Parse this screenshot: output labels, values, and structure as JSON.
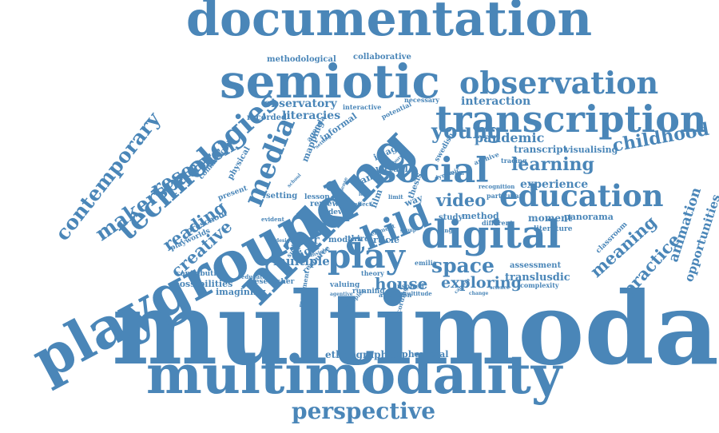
{
  "color": "#4a86b8",
  "words": [
    "multimodal",
    "multimodality",
    "documentation",
    "semiotic",
    "making",
    "playground",
    "digital",
    "transcription",
    "social",
    "observation",
    "child",
    "play",
    "education",
    "perspective",
    "technologies",
    "media",
    "makerspace",
    "contemporary",
    "research",
    "space",
    "young",
    "video",
    "learning",
    "childhood",
    "creative",
    "reading",
    "house",
    "exploring",
    "meaning",
    "practice",
    "animation",
    "opportunities",
    "pandemic",
    "interaction",
    "observatory",
    "literacies",
    "experience",
    "transcript",
    "visualising",
    "year",
    "multiple",
    "sign",
    "translusdic",
    "ethnographic",
    "ephemeral",
    "methodological",
    "collaborative",
    "possibilities",
    "imagining",
    "researcher",
    "contribution",
    "playworlds",
    "preschool",
    "mapping",
    "informal",
    "agenda",
    "recorded",
    "commercial",
    "physical",
    "present",
    "setting",
    "lesson",
    "review",
    "device",
    "form",
    "game",
    "film",
    "image",
    "virtual",
    "way",
    "thesis",
    "study",
    "method",
    "article",
    "third",
    "mode",
    "theory",
    "valuing",
    "running",
    "inspired",
    "moment",
    "panorama",
    "literature",
    "different",
    "assessment",
    "classroom",
    "complexity",
    "potential",
    "necessary",
    "interactive",
    "swedish",
    "archive",
    "particular",
    "recognition",
    "resource",
    "support",
    "educator",
    "evident",
    "attention",
    "multitude",
    "emilia",
    "range",
    "dynamic",
    "border",
    "tracing",
    "element",
    "agentive",
    "movement",
    "recording",
    "complex",
    "design",
    "insight",
    "person",
    "change",
    "science",
    "camera",
    "school",
    "effect",
    "limit",
    "time",
    "look",
    "sense",
    "setting",
    "group"
  ]
}
